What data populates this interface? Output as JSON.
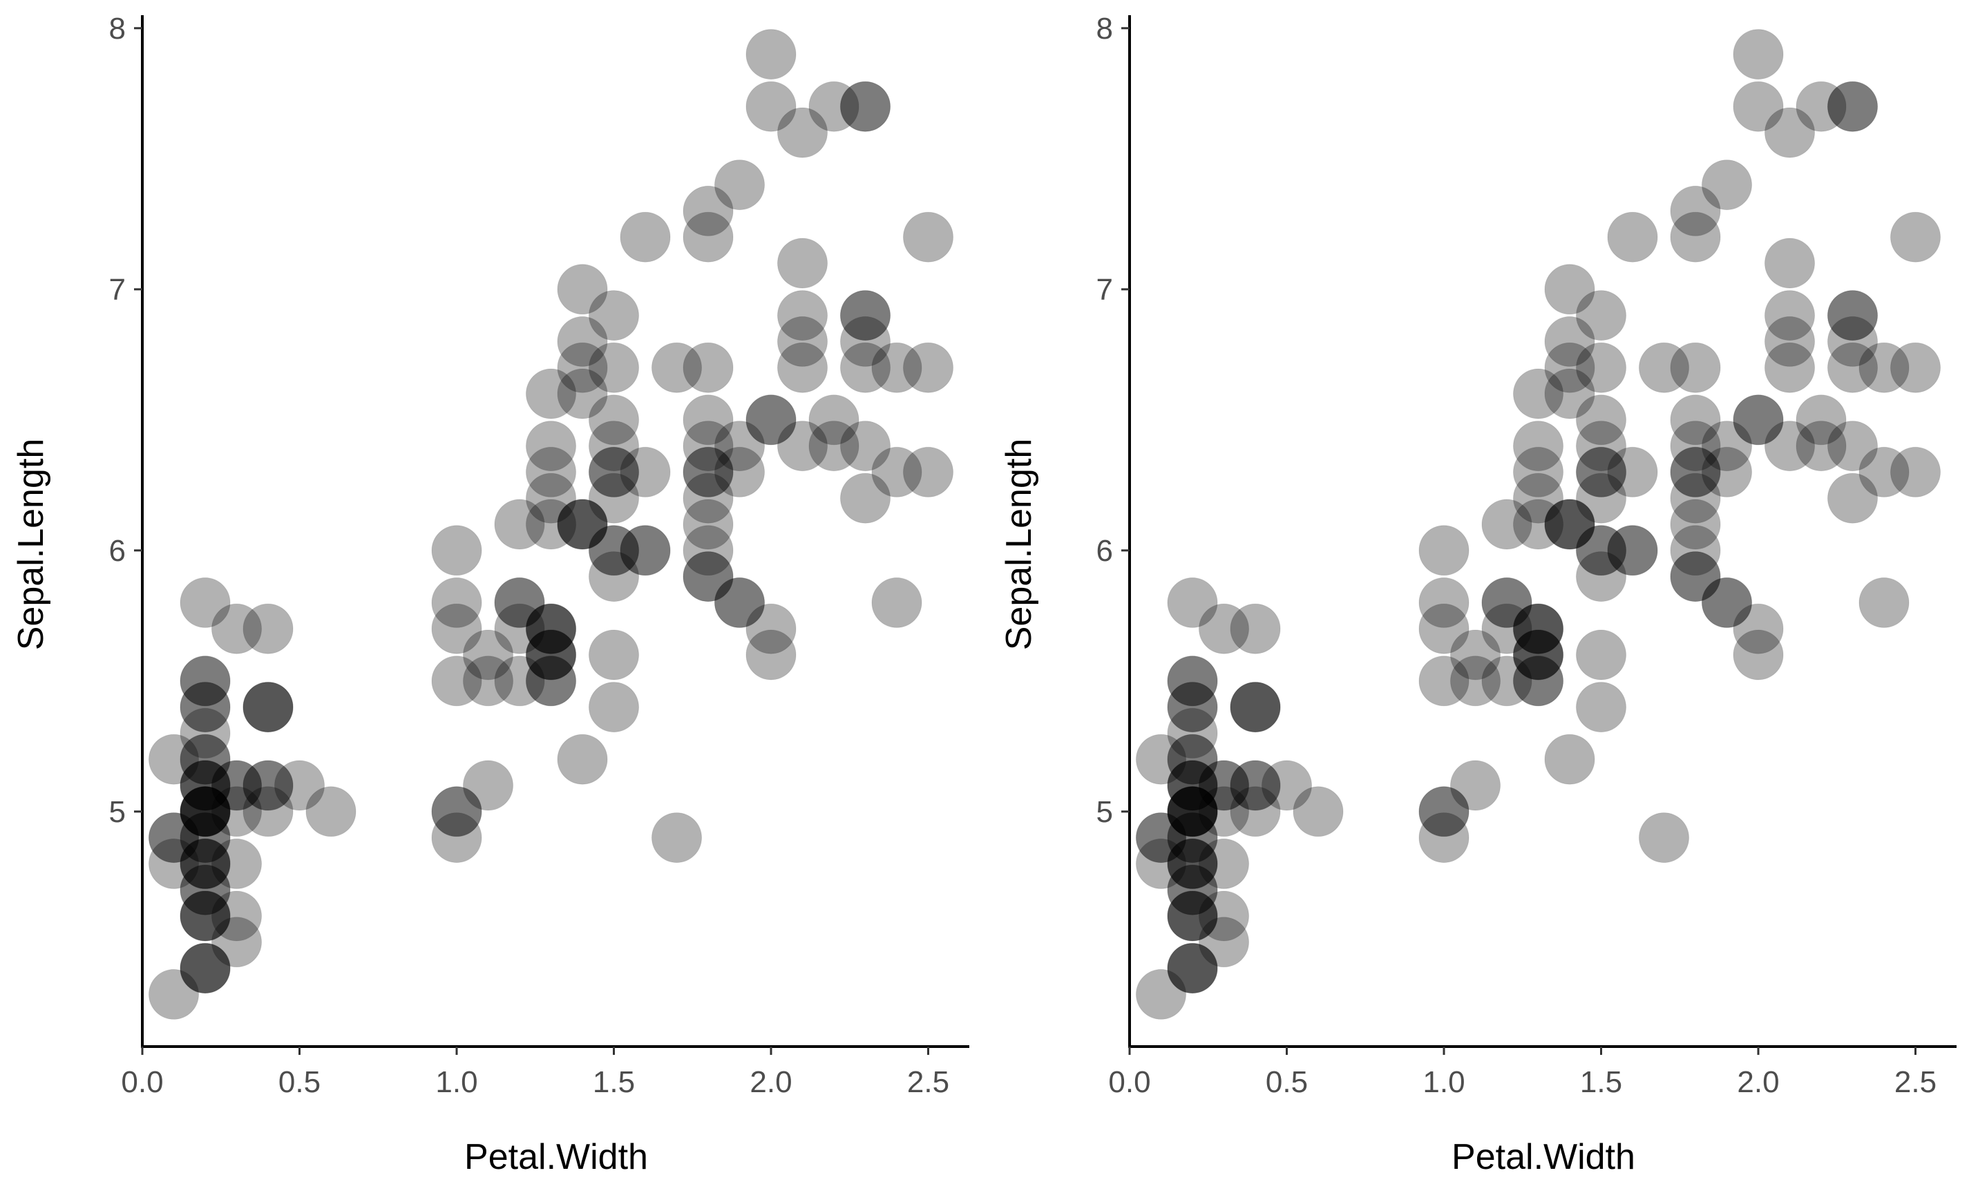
{
  "chart_data": [
    {
      "type": "scatter",
      "title": "",
      "xlabel": "Petal.Width",
      "ylabel": "Sepal.Length",
      "xlim": [
        0.0,
        2.6
      ],
      "ylim": [
        4.1,
        8.1
      ],
      "xticks": [
        "0.0",
        "0.5",
        "1.0",
        "1.5",
        "2.0",
        "2.5"
      ],
      "yticks": [
        "5",
        "6",
        "7",
        "8"
      ],
      "grid": false,
      "point_color": "#000000",
      "point_opacity": 0.3,
      "points": [
        [
          0.2,
          5.1
        ],
        [
          0.2,
          4.9
        ],
        [
          0.2,
          4.7
        ],
        [
          0.2,
          4.6
        ],
        [
          0.2,
          5.0
        ],
        [
          0.4,
          5.4
        ],
        [
          0.3,
          4.6
        ],
        [
          0.2,
          5.0
        ],
        [
          0.2,
          4.4
        ],
        [
          0.1,
          4.9
        ],
        [
          0.2,
          5.4
        ],
        [
          0.2,
          4.8
        ],
        [
          0.1,
          4.8
        ],
        [
          0.1,
          4.3
        ],
        [
          0.2,
          5.8
        ],
        [
          0.4,
          5.7
        ],
        [
          0.4,
          5.4
        ],
        [
          0.3,
          5.1
        ],
        [
          0.3,
          5.7
        ],
        [
          0.3,
          5.1
        ],
        [
          0.2,
          5.4
        ],
        [
          0.4,
          5.1
        ],
        [
          0.2,
          4.6
        ],
        [
          0.5,
          5.1
        ],
        [
          0.2,
          4.8
        ],
        [
          0.2,
          5.0
        ],
        [
          0.4,
          5.0
        ],
        [
          0.2,
          5.2
        ],
        [
          0.2,
          5.2
        ],
        [
          0.2,
          4.7
        ],
        [
          0.2,
          4.8
        ],
        [
          0.4,
          5.4
        ],
        [
          0.1,
          5.2
        ],
        [
          0.2,
          5.5
        ],
        [
          0.2,
          4.9
        ],
        [
          0.2,
          5.0
        ],
        [
          0.2,
          5.5
        ],
        [
          0.1,
          4.9
        ],
        [
          0.2,
          4.4
        ],
        [
          0.2,
          5.1
        ],
        [
          0.3,
          5.0
        ],
        [
          0.3,
          4.5
        ],
        [
          0.2,
          4.4
        ],
        [
          0.6,
          5.0
        ],
        [
          0.4,
          5.1
        ],
        [
          0.3,
          4.8
        ],
        [
          0.2,
          5.1
        ],
        [
          0.2,
          4.6
        ],
        [
          0.2,
          5.3
        ],
        [
          0.2,
          5.0
        ],
        [
          1.4,
          7.0
        ],
        [
          1.5,
          6.4
        ],
        [
          1.5,
          6.9
        ],
        [
          1.3,
          5.5
        ],
        [
          1.5,
          6.5
        ],
        [
          1.3,
          5.7
        ],
        [
          1.6,
          6.3
        ],
        [
          1.0,
          4.9
        ],
        [
          1.3,
          6.6
        ],
        [
          1.4,
          5.2
        ],
        [
          1.0,
          5.0
        ],
        [
          1.5,
          5.9
        ],
        [
          1.0,
          6.0
        ],
        [
          1.4,
          6.1
        ],
        [
          1.3,
          5.6
        ],
        [
          1.4,
          6.7
        ],
        [
          1.5,
          5.6
        ],
        [
          1.0,
          5.8
        ],
        [
          1.5,
          6.2
        ],
        [
          1.1,
          5.6
        ],
        [
          1.8,
          5.9
        ],
        [
          1.3,
          6.1
        ],
        [
          1.5,
          6.3
        ],
        [
          1.2,
          6.1
        ],
        [
          1.3,
          6.4
        ],
        [
          1.4,
          6.6
        ],
        [
          1.4,
          6.8
        ],
        [
          1.7,
          6.7
        ],
        [
          1.5,
          6.0
        ],
        [
          1.0,
          5.7
        ],
        [
          1.1,
          5.5
        ],
        [
          1.0,
          5.5
        ],
        [
          1.2,
          5.8
        ],
        [
          1.6,
          6.0
        ],
        [
          1.5,
          5.4
        ],
        [
          1.6,
          6.0
        ],
        [
          1.5,
          6.7
        ],
        [
          1.3,
          6.3
        ],
        [
          1.3,
          5.6
        ],
        [
          1.3,
          5.5
        ],
        [
          1.2,
          5.5
        ],
        [
          1.4,
          6.1
        ],
        [
          1.2,
          5.8
        ],
        [
          1.0,
          5.0
        ],
        [
          1.3,
          5.6
        ],
        [
          1.2,
          5.7
        ],
        [
          1.3,
          5.7
        ],
        [
          1.3,
          6.2
        ],
        [
          1.1,
          5.1
        ],
        [
          1.3,
          5.7
        ],
        [
          2.5,
          6.3
        ],
        [
          1.9,
          5.8
        ],
        [
          2.1,
          7.1
        ],
        [
          1.8,
          6.3
        ],
        [
          2.2,
          6.5
        ],
        [
          2.1,
          7.6
        ],
        [
          1.7,
          4.9
        ],
        [
          1.8,
          7.3
        ],
        [
          1.8,
          6.7
        ],
        [
          2.5,
          7.2
        ],
        [
          2.0,
          6.5
        ],
        [
          1.9,
          6.4
        ],
        [
          2.1,
          6.8
        ],
        [
          2.0,
          5.7
        ],
        [
          2.4,
          5.8
        ],
        [
          2.3,
          6.4
        ],
        [
          1.8,
          6.5
        ],
        [
          2.2,
          7.7
        ],
        [
          2.3,
          7.7
        ],
        [
          1.5,
          6.0
        ],
        [
          2.3,
          6.9
        ],
        [
          2.0,
          5.6
        ],
        [
          2.0,
          7.7
        ],
        [
          1.8,
          6.3
        ],
        [
          2.1,
          6.7
        ],
        [
          1.8,
          7.2
        ],
        [
          1.8,
          6.2
        ],
        [
          1.8,
          6.1
        ],
        [
          2.1,
          6.4
        ],
        [
          1.6,
          7.2
        ],
        [
          1.9,
          7.4
        ],
        [
          2.0,
          7.9
        ],
        [
          2.2,
          6.4
        ],
        [
          1.5,
          6.3
        ],
        [
          1.4,
          6.1
        ],
        [
          2.3,
          7.7
        ],
        [
          2.4,
          6.3
        ],
        [
          1.8,
          6.4
        ],
        [
          1.8,
          6.0
        ],
        [
          2.1,
          6.9
        ],
        [
          2.4,
          6.7
        ],
        [
          2.3,
          6.9
        ],
        [
          1.9,
          5.8
        ],
        [
          2.3,
          6.8
        ],
        [
          2.5,
          6.7
        ],
        [
          2.3,
          6.7
        ],
        [
          1.9,
          6.3
        ],
        [
          2.0,
          6.5
        ],
        [
          2.3,
          6.2
        ],
        [
          1.8,
          5.9
        ]
      ]
    },
    {
      "type": "scatter",
      "title": "",
      "xlabel": "Petal.Width",
      "ylabel": "Sepal.Length",
      "xlim": [
        0.0,
        2.6
      ],
      "ylim": [
        4.1,
        8.1
      ],
      "xticks": [
        "0.0",
        "0.5",
        "1.0",
        "1.5",
        "2.0",
        "2.5"
      ],
      "yticks": [
        "5",
        "6",
        "7",
        "8"
      ],
      "grid": false,
      "point_color": "#000000",
      "point_opacity": 0.3,
      "points": [
        [
          0.2,
          5.1
        ],
        [
          0.2,
          4.9
        ],
        [
          0.2,
          4.7
        ],
        [
          0.2,
          4.6
        ],
        [
          0.2,
          5.0
        ],
        [
          0.4,
          5.4
        ],
        [
          0.3,
          4.6
        ],
        [
          0.2,
          5.0
        ],
        [
          0.2,
          4.4
        ],
        [
          0.1,
          4.9
        ],
        [
          0.2,
          5.4
        ],
        [
          0.2,
          4.8
        ],
        [
          0.1,
          4.8
        ],
        [
          0.1,
          4.3
        ],
        [
          0.2,
          5.8
        ],
        [
          0.4,
          5.7
        ],
        [
          0.4,
          5.4
        ],
        [
          0.3,
          5.1
        ],
        [
          0.3,
          5.7
        ],
        [
          0.3,
          5.1
        ],
        [
          0.2,
          5.4
        ],
        [
          0.4,
          5.1
        ],
        [
          0.2,
          4.6
        ],
        [
          0.5,
          5.1
        ],
        [
          0.2,
          4.8
        ],
        [
          0.2,
          5.0
        ],
        [
          0.4,
          5.0
        ],
        [
          0.2,
          5.2
        ],
        [
          0.2,
          5.2
        ],
        [
          0.2,
          4.7
        ],
        [
          0.2,
          4.8
        ],
        [
          0.4,
          5.4
        ],
        [
          0.1,
          5.2
        ],
        [
          0.2,
          5.5
        ],
        [
          0.2,
          4.9
        ],
        [
          0.2,
          5.0
        ],
        [
          0.2,
          5.5
        ],
        [
          0.1,
          4.9
        ],
        [
          0.2,
          4.4
        ],
        [
          0.2,
          5.1
        ],
        [
          0.3,
          5.0
        ],
        [
          0.3,
          4.5
        ],
        [
          0.2,
          4.4
        ],
        [
          0.6,
          5.0
        ],
        [
          0.4,
          5.1
        ],
        [
          0.3,
          4.8
        ],
        [
          0.2,
          5.1
        ],
        [
          0.2,
          4.6
        ],
        [
          0.2,
          5.3
        ],
        [
          0.2,
          5.0
        ],
        [
          1.4,
          7.0
        ],
        [
          1.5,
          6.4
        ],
        [
          1.5,
          6.9
        ],
        [
          1.3,
          5.5
        ],
        [
          1.5,
          6.5
        ],
        [
          1.3,
          5.7
        ],
        [
          1.6,
          6.3
        ],
        [
          1.0,
          4.9
        ],
        [
          1.3,
          6.6
        ],
        [
          1.4,
          5.2
        ],
        [
          1.0,
          5.0
        ],
        [
          1.5,
          5.9
        ],
        [
          1.0,
          6.0
        ],
        [
          1.4,
          6.1
        ],
        [
          1.3,
          5.6
        ],
        [
          1.4,
          6.7
        ],
        [
          1.5,
          5.6
        ],
        [
          1.0,
          5.8
        ],
        [
          1.5,
          6.2
        ],
        [
          1.1,
          5.6
        ],
        [
          1.8,
          5.9
        ],
        [
          1.3,
          6.1
        ],
        [
          1.5,
          6.3
        ],
        [
          1.2,
          6.1
        ],
        [
          1.3,
          6.4
        ],
        [
          1.4,
          6.6
        ],
        [
          1.4,
          6.8
        ],
        [
          1.7,
          6.7
        ],
        [
          1.5,
          6.0
        ],
        [
          1.0,
          5.7
        ],
        [
          1.1,
          5.5
        ],
        [
          1.0,
          5.5
        ],
        [
          1.2,
          5.8
        ],
        [
          1.6,
          6.0
        ],
        [
          1.5,
          5.4
        ],
        [
          1.6,
          6.0
        ],
        [
          1.5,
          6.7
        ],
        [
          1.3,
          6.3
        ],
        [
          1.3,
          5.6
        ],
        [
          1.3,
          5.5
        ],
        [
          1.2,
          5.5
        ],
        [
          1.4,
          6.1
        ],
        [
          1.2,
          5.8
        ],
        [
          1.0,
          5.0
        ],
        [
          1.3,
          5.6
        ],
        [
          1.2,
          5.7
        ],
        [
          1.3,
          5.7
        ],
        [
          1.3,
          6.2
        ],
        [
          1.1,
          5.1
        ],
        [
          1.3,
          5.7
        ],
        [
          2.5,
          6.3
        ],
        [
          1.9,
          5.8
        ],
        [
          2.1,
          7.1
        ],
        [
          1.8,
          6.3
        ],
        [
          2.2,
          6.5
        ],
        [
          2.1,
          7.6
        ],
        [
          1.7,
          4.9
        ],
        [
          1.8,
          7.3
        ],
        [
          1.8,
          6.7
        ],
        [
          2.5,
          7.2
        ],
        [
          2.0,
          6.5
        ],
        [
          1.9,
          6.4
        ],
        [
          2.1,
          6.8
        ],
        [
          2.0,
          5.7
        ],
        [
          2.4,
          5.8
        ],
        [
          2.3,
          6.4
        ],
        [
          1.8,
          6.5
        ],
        [
          2.2,
          7.7
        ],
        [
          2.3,
          7.7
        ],
        [
          1.5,
          6.0
        ],
        [
          2.3,
          6.9
        ],
        [
          2.0,
          5.6
        ],
        [
          2.0,
          7.7
        ],
        [
          1.8,
          6.3
        ],
        [
          2.1,
          6.7
        ],
        [
          1.8,
          7.2
        ],
        [
          1.8,
          6.2
        ],
        [
          1.8,
          6.1
        ],
        [
          2.1,
          6.4
        ],
        [
          1.6,
          7.2
        ],
        [
          1.9,
          7.4
        ],
        [
          2.0,
          7.9
        ],
        [
          2.2,
          6.4
        ],
        [
          1.5,
          6.3
        ],
        [
          1.4,
          6.1
        ],
        [
          2.3,
          7.7
        ],
        [
          2.4,
          6.3
        ],
        [
          1.8,
          6.4
        ],
        [
          1.8,
          6.0
        ],
        [
          2.1,
          6.9
        ],
        [
          2.4,
          6.7
        ],
        [
          2.3,
          6.9
        ],
        [
          1.9,
          5.8
        ],
        [
          2.3,
          6.8
        ],
        [
          2.5,
          6.7
        ],
        [
          2.3,
          6.7
        ],
        [
          1.9,
          6.3
        ],
        [
          2.0,
          6.5
        ],
        [
          2.3,
          6.2
        ],
        [
          1.8,
          5.9
        ]
      ]
    }
  ]
}
